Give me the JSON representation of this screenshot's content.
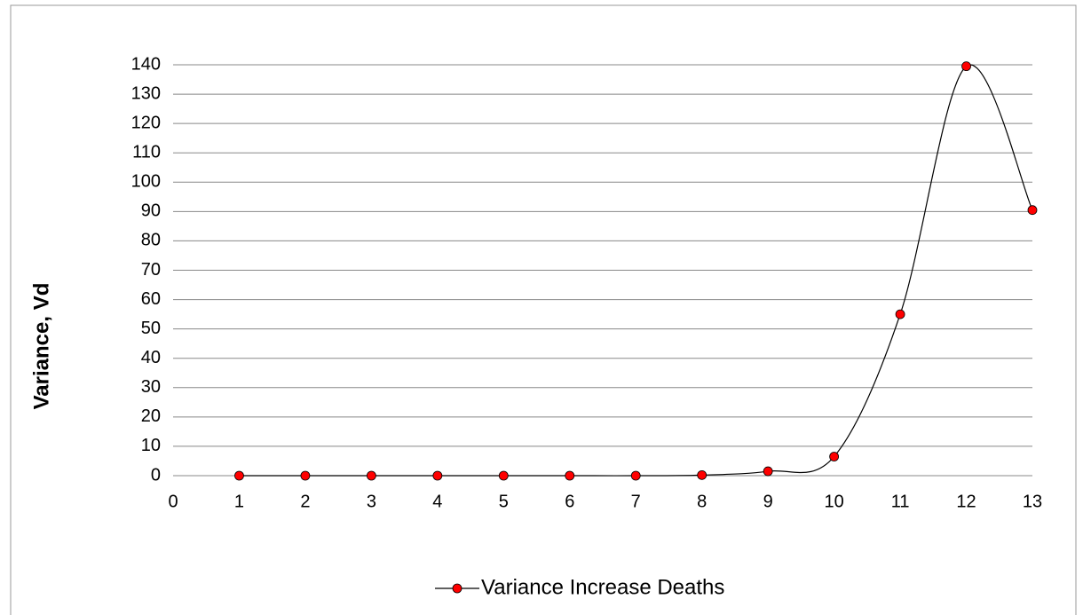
{
  "chart_data": {
    "type": "line",
    "y_label": "Variance, Vd",
    "x": [
      1,
      2,
      3,
      4,
      5,
      6,
      7,
      8,
      9,
      10,
      11,
      12,
      13
    ],
    "series": [
      {
        "name": "Variance Increase Deaths",
        "color": "#ff0000",
        "line_color": "#000000",
        "values": [
          0,
          0,
          0,
          0,
          0,
          0,
          0,
          0.2,
          1.5,
          6.5,
          55,
          139.5,
          90.5
        ]
      }
    ],
    "smooth": true,
    "xlim": [
      0,
      13
    ],
    "xticks": [
      0,
      1,
      2,
      3,
      4,
      5,
      6,
      7,
      8,
      9,
      10,
      11,
      12,
      13
    ],
    "ylim": [
      0,
      140
    ],
    "yticks": [
      0,
      10,
      20,
      30,
      40,
      50,
      60,
      70,
      80,
      90,
      100,
      110,
      120,
      130,
      140
    ],
    "grid": true,
    "legend": "bottom"
  }
}
